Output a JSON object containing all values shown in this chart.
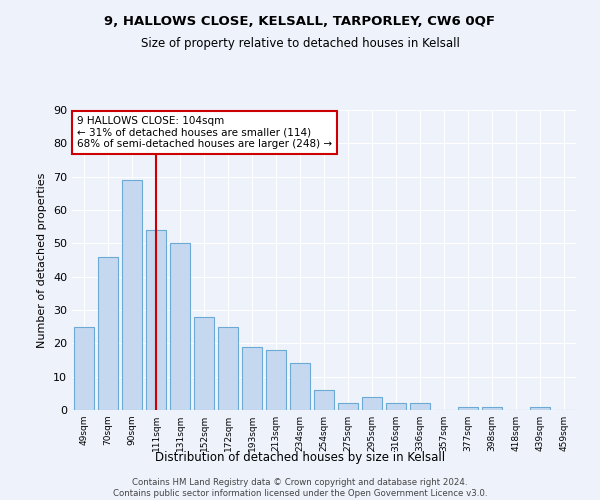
{
  "title1": "9, HALLOWS CLOSE, KELSALL, TARPORLEY, CW6 0QF",
  "title2": "Size of property relative to detached houses in Kelsall",
  "xlabel": "Distribution of detached houses by size in Kelsall",
  "ylabel": "Number of detached properties",
  "categories": [
    "49sqm",
    "70sqm",
    "90sqm",
    "111sqm",
    "131sqm",
    "152sqm",
    "172sqm",
    "193sqm",
    "213sqm",
    "234sqm",
    "254sqm",
    "275sqm",
    "295sqm",
    "316sqm",
    "336sqm",
    "357sqm",
    "377sqm",
    "398sqm",
    "418sqm",
    "439sqm",
    "459sqm"
  ],
  "values": [
    25,
    46,
    69,
    54,
    50,
    28,
    25,
    19,
    18,
    14,
    6,
    2,
    4,
    2,
    2,
    0,
    1,
    1,
    0,
    1,
    0
  ],
  "bar_color": "#c5d8f0",
  "bar_edge_color": "#6aaad4",
  "vline_index": 3,
  "vline_color": "#cc0000",
  "annotation_text": "9 HALLOWS CLOSE: 104sqm\n← 31% of detached houses are smaller (114)\n68% of semi-detached houses are larger (248) →",
  "annotation_box_color": "#ffffff",
  "annotation_box_edge": "#cc0000",
  "ylim": [
    0,
    90
  ],
  "yticks": [
    0,
    10,
    20,
    30,
    40,
    50,
    60,
    70,
    80,
    90
  ],
  "footer1": "Contains HM Land Registry data © Crown copyright and database right 2024.",
  "footer2": "Contains public sector information licensed under the Open Government Licence v3.0.",
  "bg_color": "#eef2fb",
  "plot_bg_color": "#eef2fb"
}
